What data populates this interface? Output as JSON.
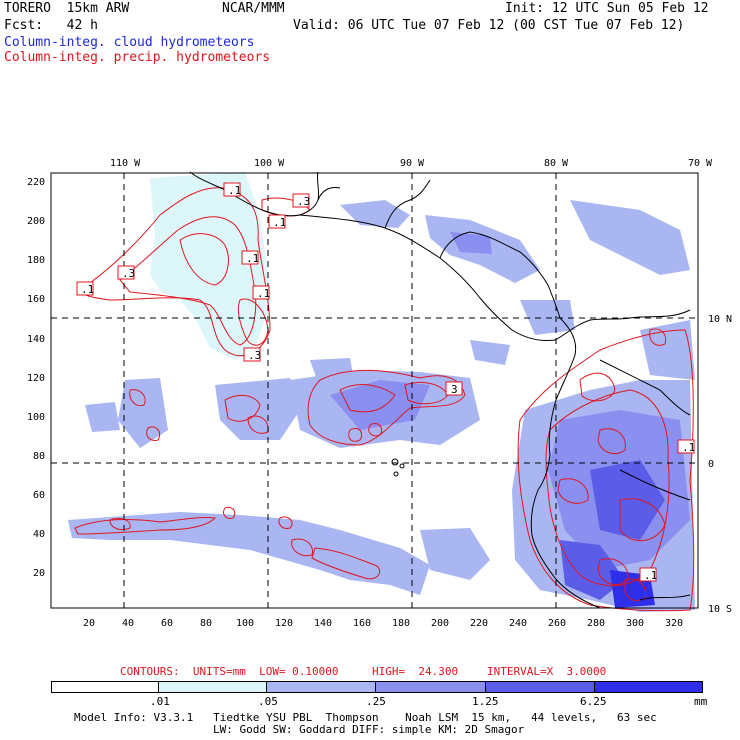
{
  "header": {
    "model": "TORERO  15km ARW",
    "org": "NCAR/MMM",
    "init": "Init: 12 UTC Sun 05 Feb 12",
    "fcst": "Fcst:   42 h",
    "valid": "Valid: 06 UTC Tue 07 Feb 12 (00 CST Tue 07 Feb 12)",
    "legend_cloud": "Column-integ. cloud hydrometeors",
    "legend_precip": "Column-integ. precip. hydrometeors"
  },
  "map": {
    "lon_labels": [
      "110 W",
      "100 W",
      "90 W",
      "80 W",
      "70 W"
    ],
    "lat_labels": [
      "10 N",
      "0",
      "10 S"
    ],
    "y_ticks": [
      "220",
      "200",
      "180",
      "160",
      "140",
      "120",
      "100",
      "80",
      "60",
      "40",
      "20"
    ],
    "x_ticks": [
      "20",
      "40",
      "60",
      "80",
      "100",
      "120",
      "140",
      "160",
      "180",
      "200",
      "220",
      "240",
      "260",
      "280",
      "300",
      "320"
    ],
    "contour_labels": [
      ".1",
      ".3",
      ".1",
      ".1",
      ".3",
      ".1",
      ".1",
      ".3",
      "3",
      ".1",
      ".1"
    ]
  },
  "contour_info": {
    "units": "CONTOURS:  UNITS=mm  LOW= 0.10000",
    "high": "HIGH=  24.300",
    "interval": "INTERVAL=X  3.0000"
  },
  "colorbar": {
    "labels": [
      ".01",
      ".05",
      ".25",
      "1.25",
      "6.25"
    ],
    "unit": "mm",
    "colors": [
      "#ffffff",
      "#ddf6fa",
      "#a9b6f2",
      "#8a8ff0",
      "#5b5de8",
      "#2f2ee8"
    ]
  },
  "footer": {
    "line1": "Model Info: V3.3.1   Tiedtke YSU PBL  Thompson    Noah LSM  15 km,   44 levels,   63 sec",
    "line2": "LW: Godd SW: Goddard DIFF: simple KM: 2D Smagor"
  }
}
